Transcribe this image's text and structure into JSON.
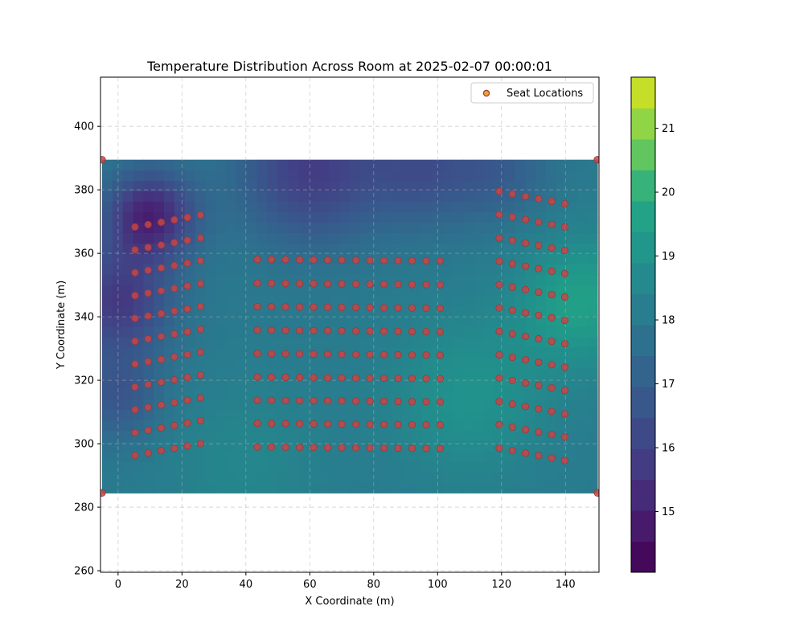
{
  "chart_data": {
    "type": "heatmap",
    "title": "Temperature Distribution Across Room at 2025-02-07 00:00:01",
    "xlabel": "X Coordinate (m)",
    "ylabel": "Y Coordinate (m)",
    "xlim": [
      -5.5,
      150.5
    ],
    "ylim": [
      259.5,
      415.5
    ],
    "xticks": [
      "0",
      "20",
      "40",
      "60",
      "80",
      "100",
      "120",
      "140"
    ],
    "yticks": [
      "260",
      "280",
      "300",
      "320",
      "340",
      "360",
      "380",
      "400"
    ],
    "grid": true,
    "legend": {
      "placement": "upper-right",
      "entries": [
        "Seat Locations"
      ]
    },
    "colorbar": {
      "range": [
        14.05,
        21.8
      ],
      "ticks": [
        "15",
        "16",
        "17",
        "18",
        "19",
        "20",
        "21"
      ],
      "colormap": "viridis"
    },
    "room_extent": {
      "x": [
        -5,
        150
      ],
      "y": [
        284.5,
        389.5
      ]
    },
    "corner_points": [
      [
        -5,
        389.5
      ],
      [
        150,
        389.5
      ],
      [
        -5,
        284.5
      ],
      [
        150,
        284.5
      ]
    ],
    "seat_sections": [
      {
        "name": "left",
        "x": [
          5.3,
          9.4,
          13.5,
          17.6,
          21.7,
          25.8
        ],
        "row_y_at_left": [
          368.3,
          361.1,
          353.9,
          346.7,
          339.5,
          332.3,
          325.1,
          317.9,
          310.7,
          303.5,
          296.3
        ],
        "row_slope_per_seat": 0.75
      },
      {
        "name": "center",
        "x": [
          43.6,
          48.0,
          52.4,
          56.8,
          61.2,
          65.6,
          70.0,
          74.4,
          78.8,
          83.2,
          87.6,
          92.0,
          96.4,
          100.8
        ],
        "row_y_at_left": [
          358.1,
          350.6,
          343.2,
          335.8,
          328.4,
          321.0,
          313.7,
          306.4,
          299.0
        ],
        "row_slope_per_seat": -0.04
      },
      {
        "name": "right",
        "x": [
          119.3,
          123.4,
          127.5,
          131.6,
          135.7,
          139.8
        ],
        "row_y_at_left": [
          379.5,
          372.2,
          364.8,
          357.5,
          350.1,
          342.8,
          335.4,
          328.0,
          320.7,
          313.3,
          306.0,
          298.6
        ],
        "row_slope_per_seat": -0.78
      }
    ],
    "temperature_field_blobs": [
      {
        "x": 10,
        "y": 372,
        "r": 14,
        "value": -3.0
      },
      {
        "x": 0,
        "y": 345,
        "r": 17,
        "value": -2.3
      },
      {
        "x": 0,
        "y": 315,
        "r": 14,
        "value": -1.3
      },
      {
        "x": 60,
        "y": 386,
        "r": 22,
        "value": -2.2
      },
      {
        "x": 95,
        "y": 387,
        "r": 18,
        "value": -1.5
      },
      {
        "x": 120,
        "y": 386,
        "r": 16,
        "value": -1.0
      },
      {
        "x": 145,
        "y": 345,
        "r": 20,
        "value": 1.5
      },
      {
        "x": 110,
        "y": 315,
        "r": 25,
        "value": 1.0
      },
      {
        "x": 40,
        "y": 295,
        "r": 25,
        "value": 0.5
      }
    ],
    "temperature_base": 18.0,
    "colors": {
      "seat_fill": "#c84446",
      "seat_edge": "#9a3a3a",
      "legend_marker_face": "#f0a030",
      "grid": "#b0b0b0"
    }
  }
}
